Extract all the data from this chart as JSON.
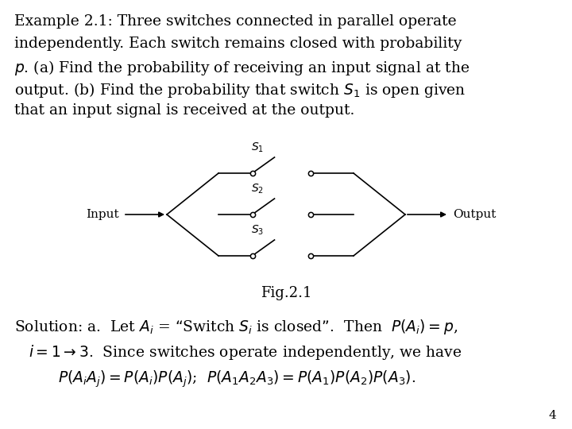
{
  "background_color": "#ffffff",
  "text_color": "#000000",
  "title_line1": "Example 2.1: Three switches connected in parallel operate",
  "title_line2": "independently. Each switch remains closed with probability",
  "title_line3": "$p$. (a) Find the probability of receiving an input signal at the",
  "title_line4": "output. (b) Find the probability that switch $S_1$ is open given",
  "title_line5": "that an input signal is received at the output.",
  "fig_label": "Fig.2.1",
  "solution_line1": "Solution: a.  Let $A_i$ = “Switch $S_i$ is closed”.  Then  $P(A_i) = p$,",
  "solution_line2": "$i = 1\\rightarrow3$.  Since switches operate independently, we have",
  "solution_line3": "$P(A_iA_j) = P(A_i)P(A_j)$;  $P(A_1A_2A_3) = P(A_1)P(A_2)P(A_3)$.",
  "page_number": "4",
  "input_label": "Input",
  "output_label": "Output",
  "switch_labels": [
    "$S_1$",
    "$S_2$",
    "$S_3$"
  ]
}
